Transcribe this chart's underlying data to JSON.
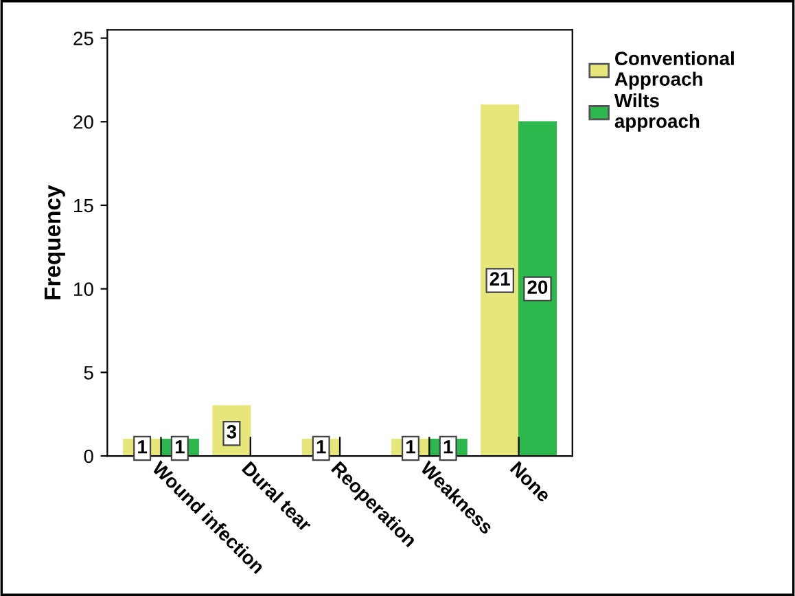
{
  "chart_data": {
    "type": "bar",
    "ylabel": "Frequency",
    "categories": [
      "Wound infection",
      "Dural tear",
      "Reoperation",
      "Weakness",
      "None"
    ],
    "series": [
      {
        "name": "Conventional Approach",
        "color": "#e6e67a",
        "values": [
          1,
          3,
          1,
          1,
          21
        ],
        "value_labels": [
          "1",
          "3",
          "1",
          "1",
          "21"
        ]
      },
      {
        "name": "Wilts approach",
        "color": "#2db84d",
        "values": [
          1,
          0,
          0,
          1,
          20
        ],
        "value_labels": [
          "1",
          null,
          null,
          "1",
          "20"
        ]
      }
    ],
    "ylim": [
      0,
      25.5
    ],
    "yticks": [
      0,
      5,
      10,
      15,
      20,
      25
    ],
    "grid": false,
    "legend": "top right"
  }
}
